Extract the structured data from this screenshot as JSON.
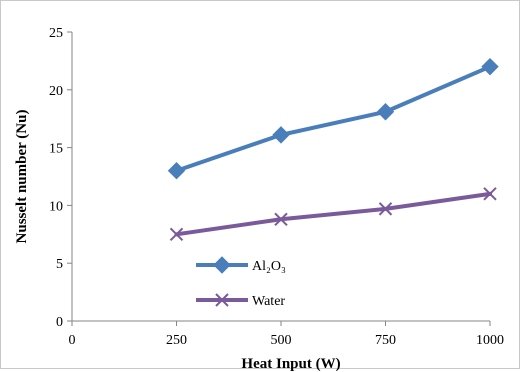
{
  "chart_data": {
    "type": "line",
    "x": [
      250,
      500,
      750,
      1000
    ],
    "series": [
      {
        "name": "Al₂O₃",
        "values": [
          13.0,
          16.1,
          18.1,
          22.0
        ],
        "color": "#4a7ebb",
        "marker": "diamond"
      },
      {
        "name": "Water",
        "values": [
          7.5,
          8.8,
          9.7,
          11.0
        ],
        "color": "#7a5a9a",
        "marker": "x"
      }
    ],
    "xlabel": "Heat Input (W)",
    "ylabel": "Nusselt number (Nu)",
    "xlim": [
      0,
      1000
    ],
    "ylim": [
      0,
      25
    ],
    "xticks": [
      0,
      250,
      500,
      750,
      1000
    ],
    "yticks": [
      0,
      5,
      10,
      15,
      20,
      25
    ],
    "grid": false,
    "legend": "lower-left inside plot"
  }
}
